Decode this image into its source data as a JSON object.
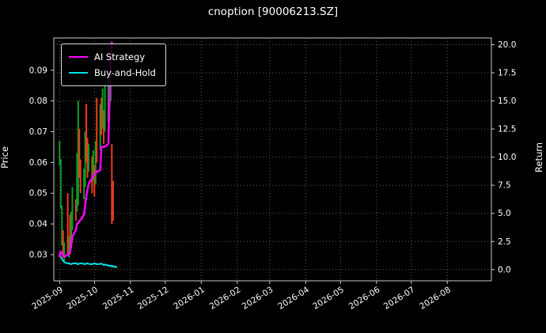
{
  "title": "cnoption [90006213.SZ]",
  "axes": {
    "left_label": "Price",
    "right_label": "Return"
  },
  "legend": {
    "position": "upper left",
    "items": [
      {
        "label": "AI Strategy",
        "color": "#ff00ff"
      },
      {
        "label": "Buy-and-Hold",
        "color": "#00e0e8"
      }
    ]
  },
  "colors": {
    "background": "#000000",
    "text": "#ffffff",
    "grid": "#5b5b5b",
    "spine": "#c8c8c8",
    "candle_up": "#0f9d26",
    "candle_down": "#f03c1e",
    "strategy": "#ff00ff",
    "buyhold": "#00e0e8"
  },
  "chart_data": {
    "type": "line",
    "overlay": "candlestick price bars with strategy/benchmark equity lines",
    "title": "cnoption [90006213.SZ]",
    "left_ylabel": "Price",
    "right_ylabel": "Return",
    "grid": true,
    "x_domain": [
      -5,
      372
    ],
    "price_ylim": [
      0.0215,
      0.1005
    ],
    "return_ylim": [
      -1.0,
      20.6
    ],
    "x_ticks": [
      {
        "label": "2025-09",
        "t": 0
      },
      {
        "label": "2025-10",
        "t": 30
      },
      {
        "label": "2025-11",
        "t": 61
      },
      {
        "label": "2025-12",
        "t": 91
      },
      {
        "label": "2026-01",
        "t": 122
      },
      {
        "label": "2026-02",
        "t": 153
      },
      {
        "label": "2026-03",
        "t": 181
      },
      {
        "label": "2026-04",
        "t": 212
      },
      {
        "label": "2026-05",
        "t": 242
      },
      {
        "label": "2026-06",
        "t": 273
      },
      {
        "label": "2026-07",
        "t": 303
      },
      {
        "label": "2026-08",
        "t": 334
      }
    ],
    "price_ticks": [
      {
        "label": "0.03",
        "v": 0.03
      },
      {
        "label": "0.04",
        "v": 0.04
      },
      {
        "label": "0.05",
        "v": 0.05
      },
      {
        "label": "0.06",
        "v": 0.06
      },
      {
        "label": "0.07",
        "v": 0.07
      },
      {
        "label": "0.08",
        "v": 0.08
      },
      {
        "label": "0.09",
        "v": 0.09
      }
    ],
    "return_ticks": [
      {
        "label": "0.0",
        "v": 0.0
      },
      {
        "label": "2.5",
        "v": 2.5
      },
      {
        "label": "5.0",
        "v": 5.0
      },
      {
        "label": "7.5",
        "v": 7.5
      },
      {
        "label": "10.0",
        "v": 10.0
      },
      {
        "label": "12.5",
        "v": 12.5
      },
      {
        "label": "15.0",
        "v": 15.0
      },
      {
        "label": "17.5",
        "v": 17.5
      },
      {
        "label": "20.0",
        "v": 20.0
      }
    ],
    "candles": [
      [
        0,
        0.059,
        0.067,
        "u"
      ],
      [
        1,
        0.045,
        0.061,
        "u"
      ],
      [
        2,
        0.033,
        0.046,
        "u"
      ],
      [
        3,
        0.029,
        0.038,
        "d"
      ],
      [
        4,
        0.028,
        0.034,
        "u"
      ],
      [
        7,
        0.03,
        0.05,
        "d"
      ],
      [
        8,
        0.029,
        0.036,
        "u"
      ],
      [
        9,
        0.03,
        0.043,
        "d"
      ],
      [
        10,
        0.032,
        0.044,
        "u"
      ],
      [
        11,
        0.038,
        0.052,
        "u"
      ],
      [
        14,
        0.041,
        0.048,
        "d"
      ],
      [
        15,
        0.044,
        0.063,
        "u"
      ],
      [
        16,
        0.046,
        0.08,
        "u"
      ],
      [
        17,
        0.055,
        0.071,
        "d"
      ],
      [
        18,
        0.05,
        0.061,
        "d"
      ],
      [
        21,
        0.048,
        0.058,
        "u"
      ],
      [
        22,
        0.052,
        0.07,
        "u"
      ],
      [
        23,
        0.06,
        0.079,
        "d"
      ],
      [
        24,
        0.055,
        0.068,
        "d"
      ],
      [
        25,
        0.057,
        0.066,
        "u"
      ],
      [
        28,
        0.05,
        0.062,
        "d"
      ],
      [
        29,
        0.054,
        0.064,
        "u"
      ],
      [
        30,
        0.049,
        0.059,
        "d"
      ],
      [
        31,
        0.053,
        0.067,
        "u"
      ],
      [
        32,
        0.06,
        0.081,
        "d"
      ],
      [
        35,
        0.064,
        0.079,
        "u"
      ],
      [
        36,
        0.069,
        0.081,
        "d"
      ],
      [
        37,
        0.071,
        0.084,
        "u"
      ],
      [
        38,
        0.066,
        0.077,
        "d"
      ],
      [
        39,
        0.07,
        0.086,
        "u"
      ],
      [
        42,
        0.073,
        0.088,
        "u"
      ],
      [
        43,
        0.078,
        0.09,
        "u"
      ],
      [
        44,
        0.08,
        0.092,
        "u"
      ],
      [
        45,
        0.04,
        0.066,
        "d"
      ],
      [
        46,
        0.041,
        0.054,
        "d"
      ]
    ],
    "strategy": [
      [
        0,
        0.0295
      ],
      [
        1,
        0.031
      ],
      [
        2,
        0.0305
      ],
      [
        3,
        0.0298
      ],
      [
        4,
        0.0293
      ],
      [
        7,
        0.03
      ],
      [
        8,
        0.0303
      ],
      [
        9,
        0.031
      ],
      [
        10,
        0.033
      ],
      [
        11,
        0.036
      ],
      [
        14,
        0.038
      ],
      [
        15,
        0.04
      ],
      [
        16,
        0.0402
      ],
      [
        17,
        0.041
      ],
      [
        18,
        0.0412
      ],
      [
        21,
        0.043
      ],
      [
        22,
        0.046
      ],
      [
        23,
        0.049
      ],
      [
        24,
        0.051
      ],
      [
        25,
        0.053
      ],
      [
        28,
        0.055
      ],
      [
        29,
        0.0558
      ],
      [
        30,
        0.056
      ],
      [
        31,
        0.0565
      ],
      [
        32,
        0.057
      ],
      [
        35,
        0.0575
      ],
      [
        36,
        0.065
      ],
      [
        37,
        0.0652
      ],
      [
        38,
        0.065
      ],
      [
        39,
        0.0652
      ],
      [
        42,
        0.066
      ],
      [
        43,
        0.08
      ],
      [
        44,
        0.092
      ],
      [
        45,
        0.099
      ]
    ],
    "buy_and_hold": [
      [
        0,
        0.03
      ],
      [
        1,
        0.0293
      ],
      [
        2,
        0.0286
      ],
      [
        3,
        0.028
      ],
      [
        4,
        0.0276
      ],
      [
        7,
        0.0271
      ],
      [
        8,
        0.0273
      ],
      [
        9,
        0.027
      ],
      [
        10,
        0.0269
      ],
      [
        11,
        0.0271
      ],
      [
        14,
        0.0272
      ],
      [
        15,
        0.027
      ],
      [
        16,
        0.0269
      ],
      [
        17,
        0.0271
      ],
      [
        18,
        0.0272
      ],
      [
        21,
        0.027
      ],
      [
        22,
        0.0269
      ],
      [
        23,
        0.0271
      ],
      [
        24,
        0.0272
      ],
      [
        25,
        0.027
      ],
      [
        28,
        0.0269
      ],
      [
        29,
        0.027
      ],
      [
        30,
        0.0272
      ],
      [
        31,
        0.027
      ],
      [
        32,
        0.0269
      ],
      [
        35,
        0.027
      ],
      [
        36,
        0.0271
      ],
      [
        37,
        0.0269
      ],
      [
        38,
        0.0266
      ],
      [
        39,
        0.0268
      ],
      [
        42,
        0.0265
      ],
      [
        43,
        0.0263
      ],
      [
        44,
        0.0265
      ],
      [
        45,
        0.0261
      ],
      [
        46,
        0.0263
      ],
      [
        47,
        0.026
      ],
      [
        48,
        0.0262
      ],
      [
        49,
        0.0259
      ]
    ]
  }
}
